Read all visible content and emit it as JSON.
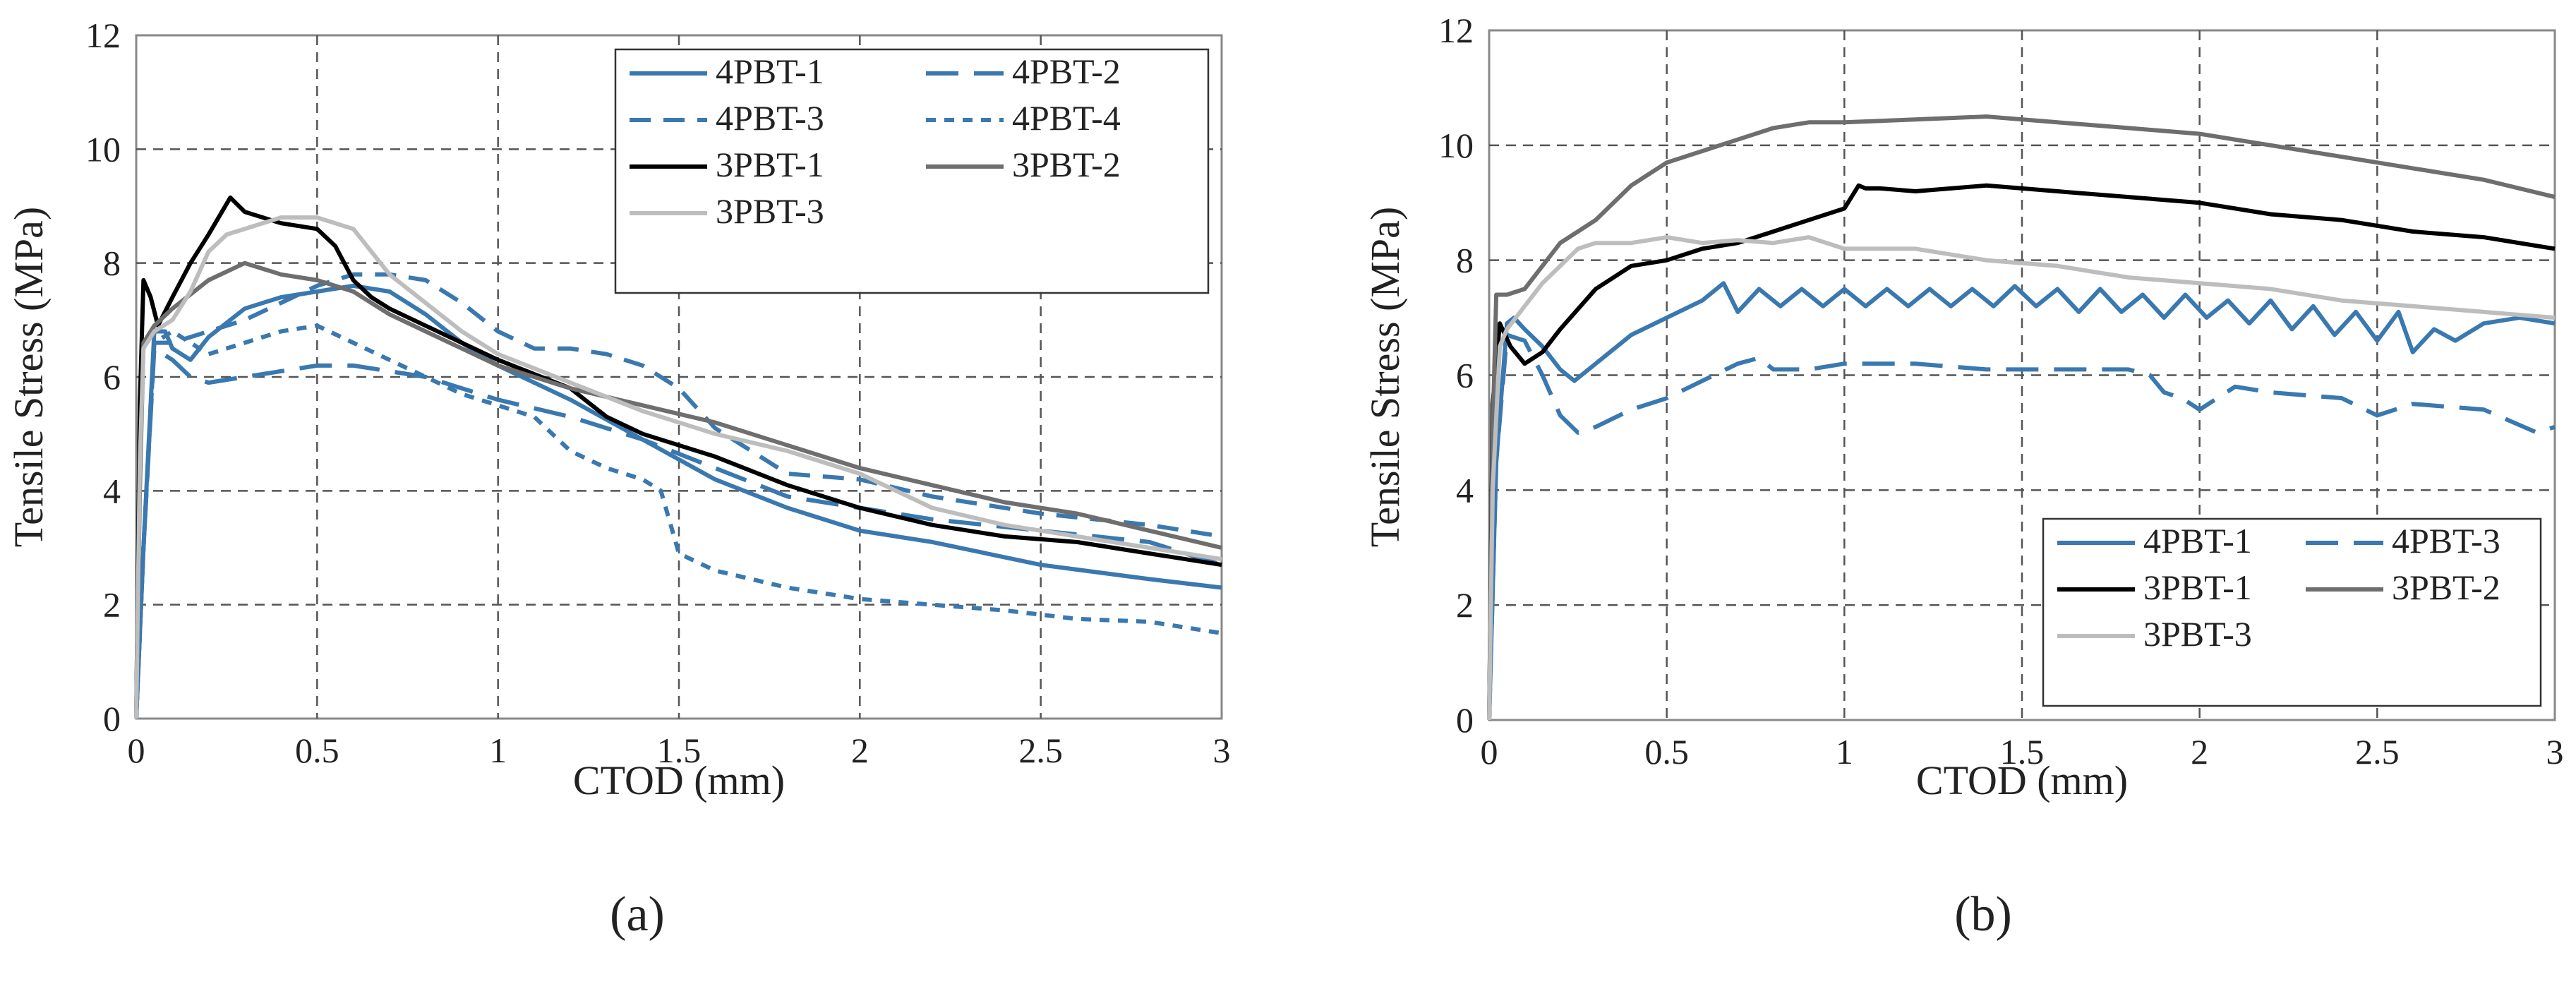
{
  "figure": {
    "panel_labels": [
      "(a)",
      "(b)"
    ]
  },
  "chart_data": [
    {
      "type": "line",
      "panel": "(a)",
      "title": "",
      "xlabel": "CTOD (mm)",
      "ylabel": "Tensile Stress (MPa)",
      "xlim": [
        0,
        3
      ],
      "ylim": [
        0,
        12
      ],
      "xticks": [
        0,
        0.5,
        1,
        1.5,
        2,
        2.5,
        3
      ],
      "xtick_labels": [
        "0",
        "0.5",
        "1",
        "1.5",
        "2",
        "2.5",
        "3"
      ],
      "yticks": [
        0,
        2,
        4,
        6,
        8,
        10,
        12
      ],
      "ytick_labels": [
        "0",
        "2",
        "4",
        "6",
        "8",
        "10",
        "12"
      ],
      "grid": true,
      "legend_position": "top-right",
      "series": [
        {
          "name": "4PBT-1",
          "color": "#3a78b0",
          "dash": "solid",
          "x": [
            0,
            0.02,
            0.05,
            0.08,
            0.1,
            0.15,
            0.2,
            0.3,
            0.4,
            0.5,
            0.6,
            0.7,
            0.8,
            0.9,
            1.0,
            1.2,
            1.4,
            1.6,
            1.8,
            2.0,
            2.2,
            2.5,
            2.8,
            3.0
          ],
          "y": [
            0,
            3.0,
            6.8,
            6.8,
            6.5,
            6.3,
            6.7,
            7.2,
            7.4,
            7.5,
            7.6,
            7.5,
            7.1,
            6.6,
            6.2,
            5.6,
            4.9,
            4.2,
            3.7,
            3.3,
            3.1,
            2.7,
            2.45,
            2.3
          ]
        },
        {
          "name": "4PBT-2",
          "color": "#3a78b0",
          "dash": "longdash",
          "x": [
            0,
            0.02,
            0.05,
            0.1,
            0.15,
            0.2,
            0.3,
            0.4,
            0.5,
            0.6,
            0.7,
            0.8,
            0.9,
            1.0,
            1.2,
            1.4,
            1.6,
            1.8,
            2.0,
            2.2,
            2.5,
            2.8,
            3.0
          ],
          "y": [
            0,
            3.0,
            6.5,
            6.3,
            6.0,
            5.9,
            6.0,
            6.1,
            6.2,
            6.2,
            6.1,
            6.0,
            5.8,
            5.6,
            5.3,
            4.9,
            4.4,
            3.9,
            3.7,
            3.5,
            3.3,
            3.1,
            2.7
          ]
        },
        {
          "name": "4PBT-3",
          "color": "#3a78b0",
          "dash": "dash",
          "x": [
            0,
            0.02,
            0.05,
            0.1,
            0.2,
            0.3,
            0.4,
            0.5,
            0.6,
            0.7,
            0.8,
            0.9,
            1.0,
            1.1,
            1.2,
            1.3,
            1.4,
            1.5,
            1.6,
            1.8,
            2.0,
            2.2,
            2.5,
            2.8,
            3.0
          ],
          "y": [
            0,
            3.0,
            6.6,
            6.6,
            6.8,
            7.0,
            7.3,
            7.6,
            7.8,
            7.8,
            7.7,
            7.3,
            6.8,
            6.5,
            6.5,
            6.4,
            6.2,
            5.8,
            5.1,
            4.3,
            4.2,
            3.9,
            3.6,
            3.4,
            3.2
          ]
        },
        {
          "name": "4PBT-4",
          "color": "#3a78b0",
          "dash": "shortdash",
          "x": [
            0,
            0.02,
            0.05,
            0.1,
            0.15,
            0.2,
            0.3,
            0.4,
            0.5,
            0.6,
            0.7,
            0.8,
            0.9,
            1.0,
            1.1,
            1.2,
            1.3,
            1.4,
            1.45,
            1.5,
            1.6,
            1.8,
            1.9,
            2.0,
            2.2,
            2.4,
            2.6,
            2.8,
            3.0
          ],
          "y": [
            0,
            3.0,
            6.6,
            6.8,
            6.6,
            6.4,
            6.6,
            6.8,
            6.9,
            6.6,
            6.3,
            6.0,
            5.7,
            5.5,
            5.3,
            4.7,
            4.4,
            4.2,
            4.0,
            2.9,
            2.6,
            2.3,
            2.2,
            2.1,
            2.0,
            1.9,
            1.75,
            1.7,
            1.5
          ]
        },
        {
          "name": "3PBT-1",
          "color": "#000000",
          "dash": "solid",
          "x": [
            0,
            0.01,
            0.02,
            0.04,
            0.06,
            0.1,
            0.15,
            0.2,
            0.26,
            0.3,
            0.4,
            0.5,
            0.55,
            0.6,
            0.65,
            0.7,
            0.8,
            0.9,
            1.0,
            1.2,
            1.3,
            1.4,
            1.6,
            1.8,
            2.0,
            2.2,
            2.4,
            2.6,
            2.8,
            3.0
          ],
          "y": [
            0,
            5.5,
            7.7,
            7.4,
            6.9,
            7.4,
            8.0,
            8.5,
            9.15,
            8.9,
            8.7,
            8.6,
            8.3,
            7.7,
            7.4,
            7.2,
            6.9,
            6.6,
            6.3,
            5.8,
            5.3,
            5.0,
            4.6,
            4.1,
            3.7,
            3.4,
            3.2,
            3.1,
            2.9,
            2.7
          ]
        },
        {
          "name": "3PBT-2",
          "color": "#6e6e6e",
          "dash": "solid",
          "x": [
            0,
            0.01,
            0.02,
            0.05,
            0.1,
            0.2,
            0.3,
            0.35,
            0.4,
            0.5,
            0.6,
            0.7,
            0.8,
            0.9,
            1.0,
            1.2,
            1.4,
            1.6,
            1.8,
            2.0,
            2.2,
            2.4,
            2.6,
            2.8,
            3.0
          ],
          "y": [
            0,
            4.0,
            6.6,
            6.9,
            7.2,
            7.7,
            8.0,
            7.9,
            7.8,
            7.7,
            7.5,
            7.1,
            6.8,
            6.5,
            6.2,
            5.8,
            5.5,
            5.2,
            4.8,
            4.4,
            4.1,
            3.8,
            3.6,
            3.3,
            3.0
          ]
        },
        {
          "name": "3PBT-3",
          "color": "#bdbdbd",
          "dash": "solid",
          "x": [
            0,
            0.01,
            0.02,
            0.05,
            0.1,
            0.15,
            0.2,
            0.25,
            0.3,
            0.4,
            0.5,
            0.6,
            0.65,
            0.7,
            0.8,
            0.9,
            1.0,
            1.2,
            1.4,
            1.6,
            1.8,
            2.0,
            2.2,
            2.4,
            2.6,
            2.8,
            3.0
          ],
          "y": [
            0,
            4.5,
            6.5,
            6.8,
            7.0,
            7.5,
            8.2,
            8.5,
            8.6,
            8.8,
            8.8,
            8.6,
            8.2,
            7.8,
            7.3,
            6.8,
            6.4,
            5.9,
            5.4,
            5.0,
            4.7,
            4.3,
            3.7,
            3.4,
            3.2,
            3.0,
            2.8
          ]
        }
      ]
    },
    {
      "type": "line",
      "panel": "(b)",
      "title": "",
      "xlabel": "CTOD (mm)",
      "ylabel": "Tensile Stress (MPa)",
      "xlim": [
        0,
        3
      ],
      "ylim": [
        0,
        12
      ],
      "xticks": [
        0,
        0.5,
        1,
        1.5,
        2,
        2.5,
        3
      ],
      "xtick_labels": [
        "0",
        "0.5",
        "1",
        "1.5",
        "2",
        "2.5",
        "3"
      ],
      "yticks": [
        0,
        2,
        4,
        6,
        8,
        10,
        12
      ],
      "ytick_labels": [
        "0",
        "2",
        "4",
        "6",
        "8",
        "10",
        "12"
      ],
      "grid": true,
      "legend_position": "bottom-right",
      "series": [
        {
          "name": "4PBT-1",
          "color": "#3a78b0",
          "dash": "solid",
          "x": [
            0,
            0.02,
            0.05,
            0.07,
            0.1,
            0.15,
            0.2,
            0.24,
            0.3,
            0.4,
            0.5,
            0.6,
            0.66,
            0.7,
            0.76,
            0.82,
            0.88,
            0.94,
            1.0,
            1.06,
            1.12,
            1.18,
            1.24,
            1.3,
            1.36,
            1.42,
            1.48,
            1.54,
            1.6,
            1.66,
            1.72,
            1.78,
            1.84,
            1.9,
            1.96,
            2.02,
            2.08,
            2.14,
            2.2,
            2.26,
            2.32,
            2.38,
            2.44,
            2.5,
            2.56,
            2.6,
            2.66,
            2.72,
            2.8,
            2.9,
            3.0
          ],
          "y": [
            0,
            4.5,
            6.9,
            7.0,
            6.8,
            6.5,
            6.1,
            5.9,
            6.2,
            6.7,
            7.0,
            7.3,
            7.6,
            7.1,
            7.5,
            7.2,
            7.5,
            7.2,
            7.5,
            7.2,
            7.5,
            7.2,
            7.5,
            7.2,
            7.5,
            7.2,
            7.55,
            7.2,
            7.5,
            7.1,
            7.5,
            7.1,
            7.4,
            7.0,
            7.4,
            7.0,
            7.3,
            6.9,
            7.3,
            6.8,
            7.2,
            6.7,
            7.1,
            6.6,
            7.1,
            6.4,
            6.8,
            6.6,
            6.9,
            7.0,
            6.9
          ]
        },
        {
          "name": "4PBT-3",
          "color": "#3a78b0",
          "dash": "longdash",
          "x": [
            0,
            0.02,
            0.05,
            0.1,
            0.15,
            0.2,
            0.25,
            0.3,
            0.4,
            0.5,
            0.6,
            0.7,
            0.76,
            0.8,
            0.9,
            1.0,
            1.2,
            1.4,
            1.6,
            1.8,
            1.86,
            1.9,
            1.95,
            2.0,
            2.1,
            2.2,
            2.4,
            2.5,
            2.6,
            2.8,
            2.95,
            3.0
          ],
          "y": [
            0,
            4.5,
            6.7,
            6.6,
            6.0,
            5.3,
            5.0,
            5.1,
            5.4,
            5.6,
            5.9,
            6.2,
            6.3,
            6.1,
            6.1,
            6.2,
            6.2,
            6.1,
            6.1,
            6.1,
            6.0,
            5.7,
            5.6,
            5.4,
            5.8,
            5.7,
            5.6,
            5.3,
            5.5,
            5.4,
            5.0,
            5.1
          ]
        },
        {
          "name": "3PBT-1",
          "color": "#000000",
          "dash": "solid",
          "x": [
            0,
            0.01,
            0.03,
            0.06,
            0.1,
            0.15,
            0.2,
            0.3,
            0.4,
            0.5,
            0.6,
            0.7,
            0.8,
            0.9,
            1.0,
            1.04,
            1.06,
            1.1,
            1.2,
            1.4,
            1.6,
            1.8,
            2.0,
            2.2,
            2.4,
            2.6,
            2.8,
            3.0
          ],
          "y": [
            0,
            5.5,
            6.9,
            6.5,
            6.2,
            6.4,
            6.8,
            7.5,
            7.9,
            8.0,
            8.2,
            8.3,
            8.5,
            8.7,
            8.9,
            9.3,
            9.25,
            9.25,
            9.2,
            9.3,
            9.2,
            9.1,
            9.0,
            8.8,
            8.7,
            8.5,
            8.4,
            8.2
          ]
        },
        {
          "name": "3PBT-2",
          "color": "#6e6e6e",
          "dash": "solid",
          "x": [
            0,
            0.01,
            0.02,
            0.05,
            0.1,
            0.15,
            0.2,
            0.3,
            0.4,
            0.5,
            0.6,
            0.7,
            0.8,
            0.9,
            1.0,
            1.2,
            1.4,
            1.6,
            1.8,
            2.0,
            2.2,
            2.4,
            2.6,
            2.8,
            3.0
          ],
          "y": [
            0,
            5.0,
            7.4,
            7.4,
            7.5,
            7.9,
            8.3,
            8.7,
            9.3,
            9.7,
            9.9,
            10.1,
            10.3,
            10.4,
            10.4,
            10.45,
            10.5,
            10.4,
            10.3,
            10.2,
            10.0,
            9.8,
            9.6,
            9.4,
            9.1
          ]
        },
        {
          "name": "3PBT-3",
          "color": "#bdbdbd",
          "dash": "solid",
          "x": [
            0,
            0.01,
            0.03,
            0.05,
            0.1,
            0.15,
            0.2,
            0.25,
            0.3,
            0.4,
            0.5,
            0.6,
            0.7,
            0.8,
            0.9,
            1.0,
            1.2,
            1.4,
            1.6,
            1.8,
            2.0,
            2.2,
            2.4,
            2.6,
            2.8,
            3.0
          ],
          "y": [
            0,
            4.0,
            6.5,
            6.8,
            7.2,
            7.6,
            7.9,
            8.2,
            8.3,
            8.3,
            8.4,
            8.3,
            8.35,
            8.3,
            8.4,
            8.2,
            8.2,
            8.0,
            7.9,
            7.7,
            7.6,
            7.5,
            7.3,
            7.2,
            7.1,
            7.0
          ]
        }
      ]
    }
  ]
}
